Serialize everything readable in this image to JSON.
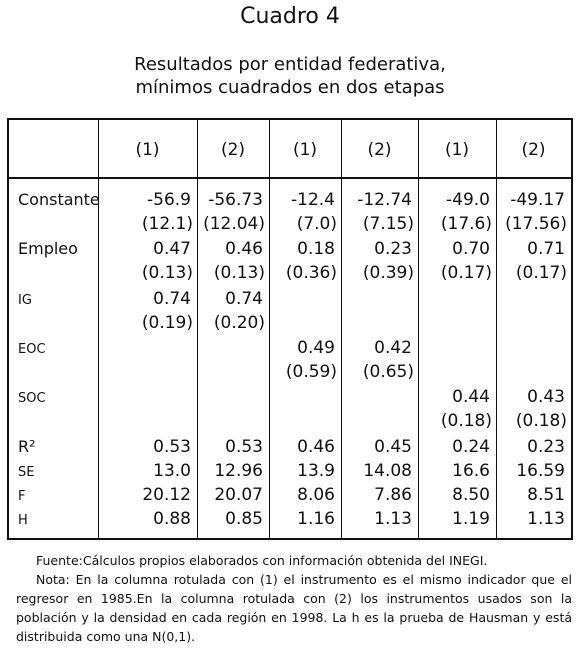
{
  "header": {
    "title": "Cuadro 4",
    "subtitle": [
      "Resultados por entidad federativa,",
      "mínimos cuadrados en dos etapas"
    ]
  },
  "table": {
    "columns": [
      "(1)",
      "(2)",
      "(1)",
      "(2)",
      "(1)",
      "(2)"
    ],
    "rows": [
      {
        "label": "Constante",
        "values": [
          "-56.9",
          "-56.73",
          "-12.4",
          "-12.74",
          "-49.0",
          "-49.17"
        ],
        "se": [
          "(12.1)",
          "(12.04)",
          "(7.0)",
          "(7.15)",
          "(17.6)",
          "(17.56)"
        ]
      },
      {
        "label": "Empleo",
        "values": [
          "0.47",
          "0.46",
          "0.18",
          "0.23",
          "0.70",
          "0.71"
        ],
        "se": [
          "(0.13)",
          "(0.13)",
          "(0.36)",
          "(0.39)",
          "(0.17)",
          "(0.17)"
        ]
      },
      {
        "label": "IG",
        "values": [
          "0.74",
          "0.74",
          null,
          null,
          null,
          null
        ],
        "se": [
          "(0.19)",
          "(0.20)",
          null,
          null,
          null,
          null
        ]
      },
      {
        "label": "EOC",
        "values": [
          null,
          null,
          "0.49",
          "0.42",
          null,
          null
        ],
        "se": [
          null,
          null,
          "(0.59)",
          "(0.65)",
          null,
          null
        ]
      },
      {
        "label": "SOC",
        "values": [
          null,
          null,
          null,
          null,
          "0.44",
          "0.43"
        ],
        "se": [
          null,
          null,
          null,
          null,
          "(0.18)",
          "(0.18)"
        ]
      },
      {
        "label": "R²",
        "values": [
          "0.53",
          "0.53",
          "0.46",
          "0.45",
          "0.24",
          "0.23"
        ]
      },
      {
        "label": "SE",
        "values": [
          "13.0",
          "12.96",
          "13.9",
          "14.08",
          "16.6",
          "16.59"
        ]
      },
      {
        "label": "F",
        "values": [
          "20.12",
          "20.07",
          "8.06",
          "7.86",
          "8.50",
          "8.51"
        ]
      },
      {
        "label": "H",
        "values": [
          "0.88",
          "0.85",
          "1.16",
          "1.13",
          "1.19",
          "1.13"
        ]
      }
    ]
  },
  "notes": {
    "source": "Fuente:Cálculos propios elaborados con información obtenida del INEGI.",
    "note": "Nota: En la columna rotulada con (1) el instrumento es el mismo indicador que el regresor en 1985.En la columna rotulada con (2) los instrumentos usados son la población y la densidad en cada región en 1998. La h es la prueba de Hausman y está distribuida como una N(0,1)."
  }
}
